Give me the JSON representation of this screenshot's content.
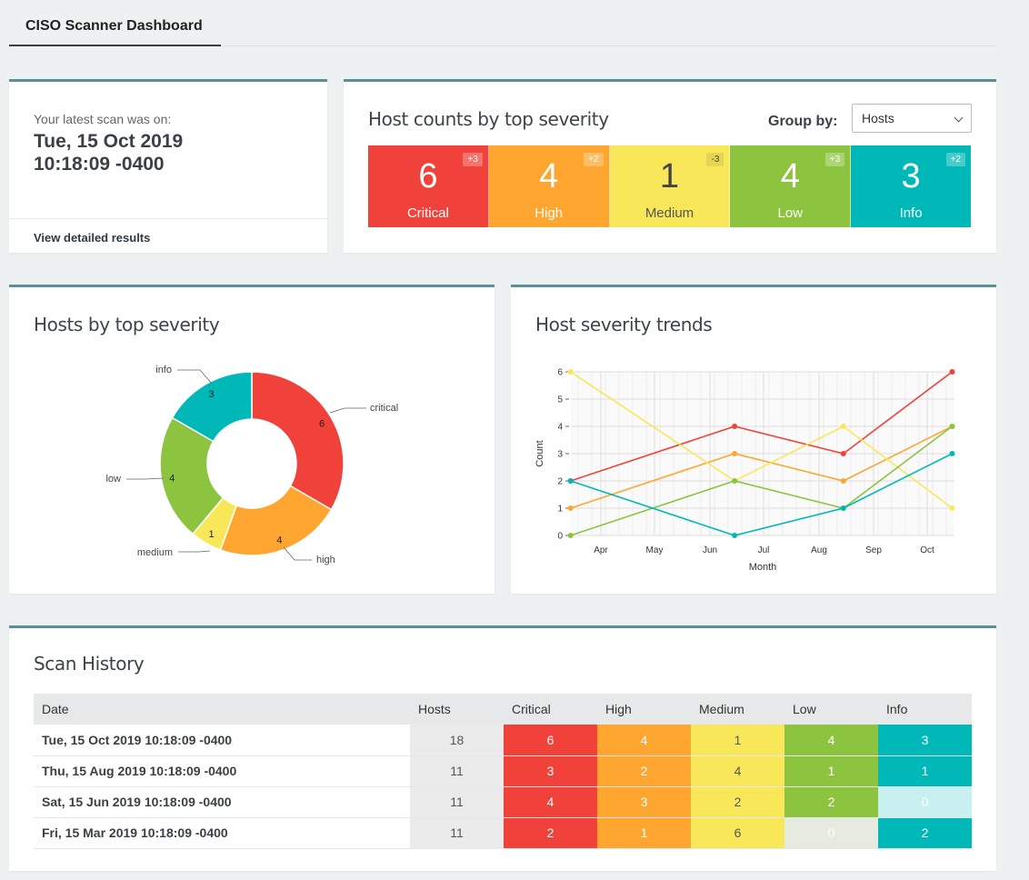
{
  "header": {
    "tab_label": "CISO Scanner Dashboard"
  },
  "latest_scan": {
    "label": "Your latest scan was on:",
    "date_line1": "Tue, 15 Oct 2019",
    "date_line2": "10:18:09 -0400",
    "link_label": "View detailed results"
  },
  "host_counts": {
    "title": "Host counts by top severity",
    "group_by_label": "Group by:",
    "group_by_value": "Hosts",
    "severities": [
      {
        "name": "Critical",
        "count": "6",
        "delta": "+3",
        "color": "#f0413a"
      },
      {
        "name": "High",
        "count": "4",
        "delta": "+2",
        "color": "#fea62f"
      },
      {
        "name": "Medium",
        "count": "1",
        "delta": "-3",
        "color": "#f8e859"
      },
      {
        "name": "Low",
        "count": "4",
        "delta": "+3",
        "color": "#8cc440"
      },
      {
        "name": "Info",
        "count": "3",
        "delta": "+2",
        "color": "#00b8b8"
      }
    ]
  },
  "donut": {
    "title": "Hosts by top severity"
  },
  "trends": {
    "title": "Host severity trends"
  },
  "chart_data": [
    {
      "type": "pie",
      "title": "Hosts by top severity",
      "categories": [
        "critical",
        "high",
        "medium",
        "low",
        "info"
      ],
      "values": [
        6,
        4,
        1,
        4,
        3
      ],
      "colors": [
        "#f0413a",
        "#fea62f",
        "#f8e859",
        "#8cc440",
        "#00b8b8"
      ]
    },
    {
      "type": "line",
      "title": "Host severity trends",
      "xlabel": "Month",
      "ylabel": "Count",
      "x": [
        "2019-03-15",
        "2019-06-15",
        "2019-08-15",
        "2019-10-15"
      ],
      "x_ticks": [
        "Apr",
        "May",
        "Jun",
        "Jul",
        "Aug",
        "Sep",
        "Oct"
      ],
      "ylim": [
        0,
        6
      ],
      "y_ticks": [
        "0",
        "1",
        "2",
        "3",
        "4",
        "5",
        "6"
      ],
      "grid": true,
      "series": [
        {
          "color": "#f0413a",
          "values": [
            2,
            4,
            3,
            6
          ]
        },
        {
          "color": "#fea62f",
          "values": [
            1,
            3,
            2,
            4
          ]
        },
        {
          "color": "#f8e859",
          "values": [
            6,
            2,
            4,
            1
          ]
        },
        {
          "color": "#8cc440",
          "values": [
            0,
            2,
            1,
            4
          ]
        },
        {
          "color": "#00b8b8",
          "values": [
            2,
            0,
            1,
            3
          ]
        }
      ]
    }
  ],
  "history": {
    "title": "Scan History",
    "columns": [
      "Date",
      "Hosts",
      "Critical",
      "High",
      "Medium",
      "Low",
      "Info"
    ],
    "rows": [
      {
        "date": "Tue, 15 Oct 2019 10:18:09 -0400",
        "hosts": "18",
        "critical": "6",
        "high": "4",
        "medium": "1",
        "low": "4",
        "info": "3"
      },
      {
        "date": "Thu, 15 Aug 2019 10:18:09 -0400",
        "hosts": "11",
        "critical": "3",
        "high": "2",
        "medium": "4",
        "low": "1",
        "info": "1"
      },
      {
        "date": "Sat, 15 Jun 2019 10:18:09 -0400",
        "hosts": "11",
        "critical": "4",
        "high": "3",
        "medium": "2",
        "low": "2",
        "info": "0"
      },
      {
        "date": "Fri, 15 Mar 2019 10:18:09 -0400",
        "hosts": "11",
        "critical": "2",
        "high": "1",
        "medium": "6",
        "low": "0",
        "info": "2"
      }
    ]
  }
}
